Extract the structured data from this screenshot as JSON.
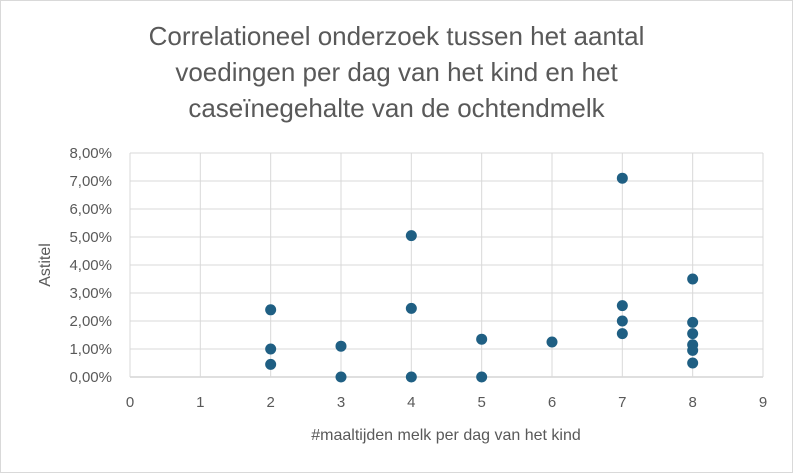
{
  "chart_data": {
    "type": "scatter",
    "title_lines": [
      "Correlationeel onderzoek tussen het aantal",
      "voedingen per dag van het kind en het",
      "caseïnegehalte van de ochtendmelk"
    ],
    "xlabel": "#maaltijden melk per dag van het kind",
    "ylabel": "Astitel",
    "xlim": [
      0,
      9
    ],
    "ylim": [
      0,
      0.08
    ],
    "grid": true,
    "x_ticks": [
      "0",
      "1",
      "2",
      "3",
      "4",
      "5",
      "6",
      "7",
      "8",
      "9"
    ],
    "y_ticks": [
      "0,00%",
      "1,00%",
      "2,00%",
      "3,00%",
      "4,00%",
      "5,00%",
      "6,00%",
      "7,00%",
      "8,00%"
    ],
    "marker_color": "#1f5f83",
    "series": [
      {
        "points": [
          {
            "x": 2,
            "y": 0.024
          },
          {
            "x": 2,
            "y": 0.01
          },
          {
            "x": 2,
            "y": 0.0045
          },
          {
            "x": 3,
            "y": 0.011
          },
          {
            "x": 3,
            "y": 0.0
          },
          {
            "x": 4,
            "y": 0.0505
          },
          {
            "x": 4,
            "y": 0.0245
          },
          {
            "x": 4,
            "y": 0.0
          },
          {
            "x": 5,
            "y": 0.0135
          },
          {
            "x": 5,
            "y": 0.0
          },
          {
            "x": 6,
            "y": 0.0125
          },
          {
            "x": 7,
            "y": 0.071
          },
          {
            "x": 7,
            "y": 0.0255
          },
          {
            "x": 7,
            "y": 0.02
          },
          {
            "x": 7,
            "y": 0.0155
          },
          {
            "x": 8,
            "y": 0.035
          },
          {
            "x": 8,
            "y": 0.0195
          },
          {
            "x": 8,
            "y": 0.0155
          },
          {
            "x": 8,
            "y": 0.0115
          },
          {
            "x": 8,
            "y": 0.0095
          },
          {
            "x": 8,
            "y": 0.005
          }
        ]
      }
    ]
  }
}
